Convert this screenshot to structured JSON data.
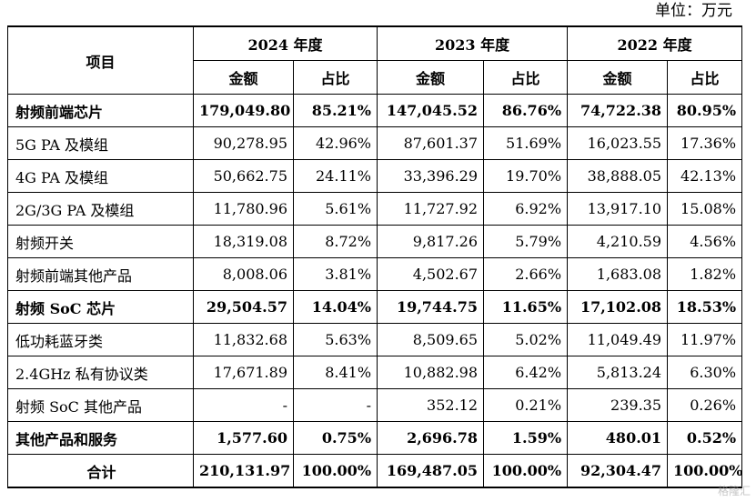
{
  "unit_label": "单位：万元",
  "header": {
    "item": "项目",
    "years": [
      "2024 年度",
      "2023 年度",
      "2022 年度"
    ],
    "amount": "金额",
    "ratio": "占比"
  },
  "rows": [
    {
      "name": "射频前端芯片",
      "bold": true,
      "v": [
        "179,049.80",
        "85.21%",
        "147,045.52",
        "86.76%",
        "74,722.38",
        "80.95%"
      ]
    },
    {
      "name": "5G PA 及模组",
      "bold": false,
      "v": [
        "90,278.95",
        "42.96%",
        "87,601.37",
        "51.69%",
        "16,023.55",
        "17.36%"
      ]
    },
    {
      "name": "4G PA 及模组",
      "bold": false,
      "v": [
        "50,662.75",
        "24.11%",
        "33,396.29",
        "19.70%",
        "38,888.05",
        "42.13%"
      ]
    },
    {
      "name": "2G/3G PA 及模组",
      "bold": false,
      "v": [
        "11,780.96",
        "5.61%",
        "11,727.92",
        "6.92%",
        "13,917.10",
        "15.08%"
      ]
    },
    {
      "name": "射频开关",
      "bold": false,
      "v": [
        "18,319.08",
        "8.72%",
        "9,817.26",
        "5.79%",
        "4,210.59",
        "4.56%"
      ]
    },
    {
      "name": "射频前端其他产品",
      "bold": false,
      "v": [
        "8,008.06",
        "3.81%",
        "4,502.67",
        "2.66%",
        "1,683.08",
        "1.82%"
      ]
    },
    {
      "name": "射频 SoC 芯片",
      "bold": true,
      "v": [
        "29,504.57",
        "14.04%",
        "19,744.75",
        "11.65%",
        "17,102.08",
        "18.53%"
      ]
    },
    {
      "name": "低功耗蓝牙类",
      "bold": false,
      "v": [
        "11,832.68",
        "5.63%",
        "8,509.65",
        "5.02%",
        "11,049.49",
        "11.97%"
      ]
    },
    {
      "name": "2.4GHz 私有协议类",
      "bold": false,
      "v": [
        "17,671.89",
        "8.41%",
        "10,882.98",
        "6.42%",
        "5,813.24",
        "6.30%"
      ]
    },
    {
      "name": "射频 SoC 其他产品",
      "bold": false,
      "v": [
        "-",
        "-",
        "352.12",
        "0.21%",
        "239.35",
        "0.26%"
      ]
    },
    {
      "name": "其他产品和服务",
      "bold": true,
      "v": [
        "1,577.60",
        "0.75%",
        "2,696.78",
        "1.59%",
        "480.01",
        "0.52%"
      ]
    },
    {
      "name": "合计",
      "bold": true,
      "total": true,
      "v": [
        "210,131.97",
        "100.00%",
        "169,487.05",
        "100.00%",
        "92,304.47",
        "100.00%"
      ]
    }
  ],
  "watermark": "格隆汇"
}
